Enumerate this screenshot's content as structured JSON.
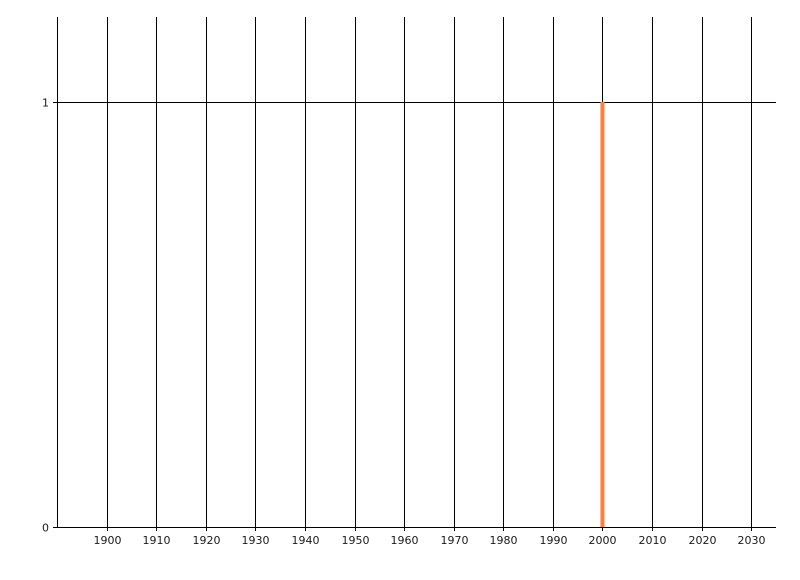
{
  "chart_data": {
    "type": "bar",
    "title": "",
    "xlabel": "",
    "ylabel": "",
    "x": [
      2000
    ],
    "values": [
      1
    ],
    "xlim": [
      1890,
      2035
    ],
    "ylim": [
      0,
      1.2
    ],
    "xticks": [
      1900,
      1910,
      1920,
      1930,
      1940,
      1950,
      1960,
      1970,
      1980,
      1990,
      2000,
      2010,
      2020,
      2030
    ],
    "yticks": [
      0,
      1
    ],
    "grid": true,
    "bar_color": "#ff7f3f",
    "grid_color": "#000000"
  }
}
